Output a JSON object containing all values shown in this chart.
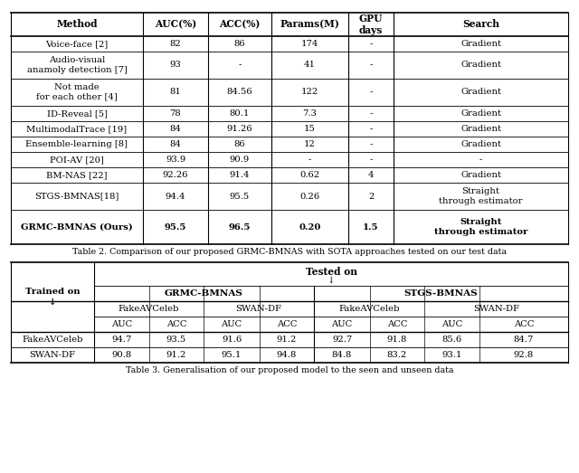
{
  "table2_caption": "Table 2. Comparison of our proposed GRMC-BMNAS with SOTA approaches tested on our test data",
  "table3_caption": "Table 3. Generalisation of our proposed model to the seen and unseen data",
  "table2_headers": [
    "Method",
    "AUC(%)",
    "ACC(%)",
    "Params(M)",
    "GPU\ndays",
    "Search"
  ],
  "table2_rows": [
    [
      "Voice-face [2]",
      "82",
      "86",
      "174",
      "-",
      "Gradient"
    ],
    [
      "Audio-visual\nanamoly detection [7]",
      "93",
      "-",
      "41",
      "-",
      "Gradient"
    ],
    [
      "Not made\nfor each other [4]",
      "81",
      "84.56",
      "122",
      "-",
      "Gradient"
    ],
    [
      "ID-Reveal [5]",
      "78",
      "80.1",
      "7.3",
      "-",
      "Gradient"
    ],
    [
      "MultimodalTrace [19]",
      "84",
      "91.26",
      "15",
      "-",
      "Gradient"
    ],
    [
      "Ensemble-learning [8]",
      "84",
      "86",
      "12",
      "-",
      "Gradient"
    ],
    [
      "POI-AV [20]",
      "93.9",
      "90.9",
      "-",
      "-",
      "-"
    ],
    [
      "BM-NAS [22]",
      "92.26",
      "91.4",
      "0.62",
      "4",
      "Gradient"
    ],
    [
      "STGS-BMNAS[18]",
      "94.4",
      "95.5",
      "0.26",
      "2",
      "Straight\nthrough estimator"
    ],
    [
      "GRMC-BMNAS (Ours)",
      "95.5",
      "96.5",
      "0.20",
      "1.5",
      "Straight\nthrough estimator"
    ]
  ],
  "table3_rows": [
    [
      "FakeAVCeleb",
      "94.7",
      "93.5",
      "91.6",
      "91.2",
      "92.7",
      "91.8",
      "85.6",
      "84.7"
    ],
    [
      "SWAN-DF",
      "90.8",
      "91.2",
      "95.1",
      "94.8",
      "84.8",
      "83.2",
      "93.1",
      "92.8"
    ]
  ],
  "bg": "#ffffff"
}
